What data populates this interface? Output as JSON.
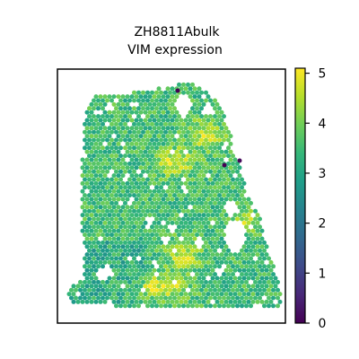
{
  "chart_data": {
    "type": "heatmap",
    "subtype": "spatial-hexbin",
    "title_lines": [
      "ZH8811Abulk",
      "VIM expression"
    ],
    "xlabel": "",
    "ylabel": "",
    "axes_ticks": false,
    "colormap": "viridis",
    "color_range": [
      0,
      5.1
    ],
    "colorbar_ticks": [
      "0",
      "1",
      "2",
      "3",
      "4",
      "5"
    ],
    "colorbar_tick_values": [
      0,
      1,
      2,
      3,
      4,
      5
    ],
    "hotspot_values": [
      4.8,
      4.6,
      4.5,
      4.7,
      4.5
    ],
    "outlier_values": [
      0.0,
      0.0,
      0.1
    ],
    "typical_value": 3.5
  }
}
